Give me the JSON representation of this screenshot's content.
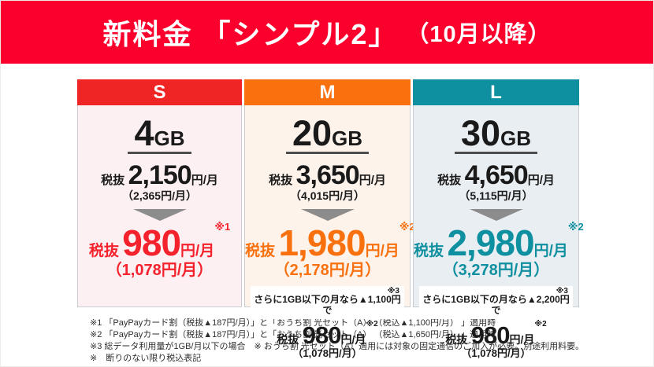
{
  "banner": {
    "title_main": "新料金 「シンプル2」",
    "title_sub": "（10月以降）",
    "bg_color": "#fc002d"
  },
  "plans": [
    {
      "tier": "S",
      "colors": {
        "header": "#ee2524",
        "body": "#fdf0f2",
        "accent": "#f4222d"
      },
      "allowance": {
        "amount": "4",
        "unit": "GB"
      },
      "regular_price": {
        "prefix": "税抜",
        "amount": "2,150",
        "unit": "円/月",
        "tax_included": "（2,365円/月）"
      },
      "discount_price": {
        "prefix": "税抜",
        "amount": "980",
        "unit": "円/月",
        "note": "※1",
        "tax_included": "（1,078円/月）"
      }
    },
    {
      "tier": "M",
      "colors": {
        "header": "#f9700f",
        "body": "#fdf3eb",
        "accent": "#f9700f"
      },
      "allowance": {
        "amount": "20",
        "unit": "GB"
      },
      "regular_price": {
        "prefix": "税抜",
        "amount": "3,650",
        "unit": "円/月",
        "tax_included": "（4,015円/月）"
      },
      "discount_price": {
        "prefix": "税抜",
        "amount": "1,980",
        "unit": "円/月",
        "note": "※2",
        "tax_included": "（2,178円/月）"
      },
      "low_usage": {
        "condition": "さらに1GB以下の月なら▲1,100円で",
        "condition_note": "※3",
        "price": {
          "prefix": "税抜",
          "amount": "980",
          "unit": "円/月",
          "note": "※2",
          "tax_included": "（1,078円/月）"
        }
      }
    },
    {
      "tier": "L",
      "colors": {
        "header": "#0f90a0",
        "body": "#e9eef2",
        "accent": "#0f90a0"
      },
      "allowance": {
        "amount": "30",
        "unit": "GB"
      },
      "regular_price": {
        "prefix": "税抜",
        "amount": "4,650",
        "unit": "円/月",
        "tax_included": "（5,115円/月）"
      },
      "discount_price": {
        "prefix": "税抜",
        "amount": "2,980",
        "unit": "円/月",
        "note": "※2",
        "tax_included": "（3,278円/月）"
      },
      "low_usage": {
        "condition": "さらに1GB以下の月なら▲2,200円で",
        "condition_note": "※3",
        "price": {
          "prefix": "税抜",
          "amount": "980",
          "unit": "円/月",
          "note": "※2",
          "tax_included": "（1,078円/月）"
        }
      }
    }
  ],
  "footnotes": [
    "※1 「PayPayカード割（税抜▲187円/月）」と「おうち割 光セット（A） （税込▲1,100円/月） 」適用時",
    "※2 「PayPayカード割（税抜▲187円/月）」と「おうち割 光セット（A） （税込▲1,650円/月） 」適用時",
    "※3 総データ利用量が1GB/月以下の場合　※ おうち割 光セット（A）適用には対象の固定通信のご加入が必要。別途利用料要。",
    "※　断りのない限り税込表記"
  ]
}
